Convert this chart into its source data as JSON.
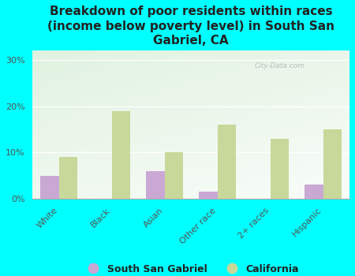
{
  "title": "Breakdown of poor residents within races\n(income below poverty level) in South San\nGabriel, CA",
  "categories": [
    "White",
    "Black",
    "Asian",
    "Other race",
    "2+ races",
    "Hispanic"
  ],
  "ssg_values": [
    5.0,
    0.0,
    6.0,
    1.5,
    0.0,
    3.0
  ],
  "ca_values": [
    9.0,
    19.0,
    10.0,
    16.0,
    13.0,
    15.0
  ],
  "ssg_color": "#c9a8d4",
  "ca_color": "#c8d89a",
  "background_outer": "#00ffff",
  "ylim": [
    0,
    32
  ],
  "yticks": [
    0,
    10,
    20,
    30
  ],
  "ytick_labels": [
    "0%",
    "10%",
    "20%",
    "30%"
  ],
  "title_fontsize": 11,
  "tick_fontsize": 8,
  "legend_fontsize": 9,
  "bar_width": 0.35,
  "watermark": "City-Data.com"
}
